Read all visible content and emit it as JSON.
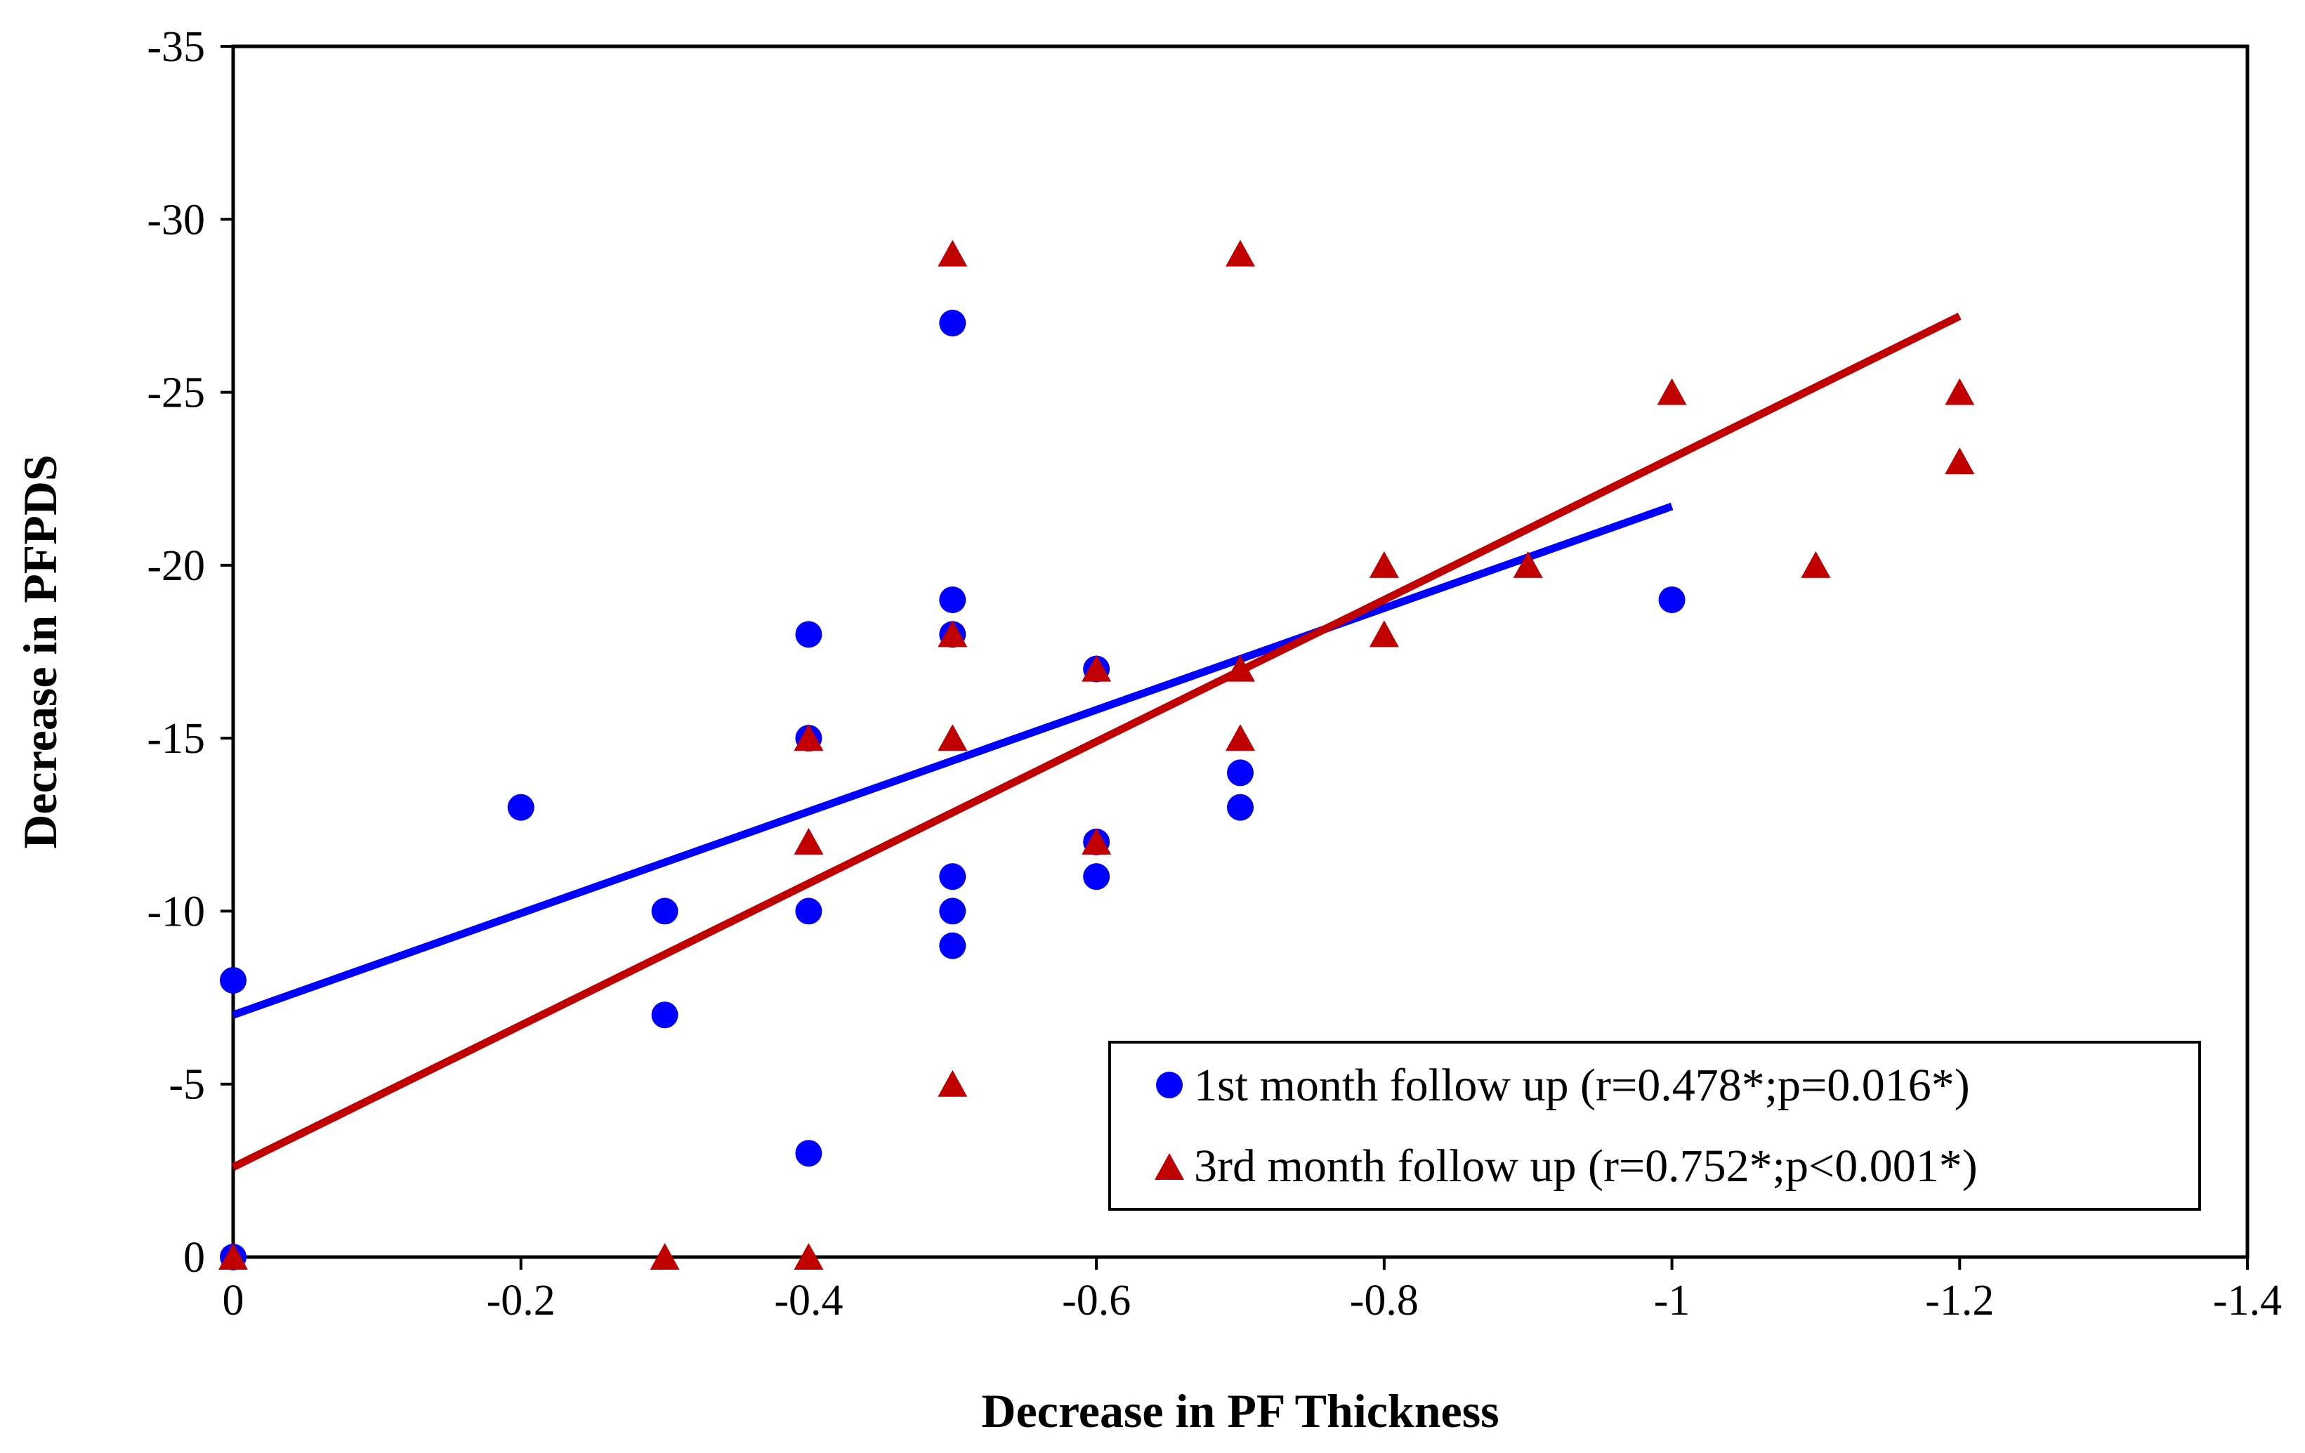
{
  "chart_data": {
    "type": "scatter",
    "title": "",
    "xlabel": "Decrease in PF Thickness",
    "ylabel": "Decrease in PFPDS",
    "xlim": [
      0,
      -1.4
    ],
    "ylim": [
      0,
      -35
    ],
    "x_ticks": [
      0,
      -0.2,
      -0.4,
      -0.6,
      -0.8,
      -1,
      -1.2,
      -1.4
    ],
    "x_tick_labels": [
      "0",
      "-0.2",
      "-0.4",
      "-0.6",
      "-0.8",
      "-1",
      "-1.2",
      "-1.4"
    ],
    "y_ticks": [
      0,
      -5,
      -10,
      -15,
      -20,
      -25,
      -30,
      -35
    ],
    "y_tick_labels": [
      "0",
      "-5",
      "-10",
      "-15",
      "-20",
      "-25",
      "-30",
      "-35"
    ],
    "grid": false,
    "legend_position": "bottom-right",
    "series": [
      {
        "name": "1st month follow up (r=0.478*;p=0.016*)",
        "marker": "circle",
        "color": "#0000ff",
        "points": [
          {
            "x": 0,
            "y": -8
          },
          {
            "x": 0,
            "y": 0
          },
          {
            "x": -0.2,
            "y": -13
          },
          {
            "x": -0.3,
            "y": -10
          },
          {
            "x": -0.3,
            "y": -7
          },
          {
            "x": -0.4,
            "y": -18
          },
          {
            "x": -0.4,
            "y": -15
          },
          {
            "x": -0.4,
            "y": -10
          },
          {
            "x": -0.4,
            "y": -3
          },
          {
            "x": -0.5,
            "y": -27
          },
          {
            "x": -0.5,
            "y": -19
          },
          {
            "x": -0.5,
            "y": -18
          },
          {
            "x": -0.5,
            "y": -11
          },
          {
            "x": -0.5,
            "y": -10
          },
          {
            "x": -0.5,
            "y": -9
          },
          {
            "x": -0.6,
            "y": -17
          },
          {
            "x": -0.6,
            "y": -12
          },
          {
            "x": -0.6,
            "y": -11
          },
          {
            "x": -0.7,
            "y": -14
          },
          {
            "x": -0.7,
            "y": -13
          },
          {
            "x": -1.0,
            "y": -19
          }
        ],
        "trendline": {
          "x": [
            0,
            -1.0
          ],
          "y": [
            -7.0,
            -21.7
          ],
          "color": "#0000ff"
        }
      },
      {
        "name": "3rd month follow up (r=0.752*;p<0.001*)",
        "marker": "triangle",
        "color": "#c00000",
        "points": [
          {
            "x": 0,
            "y": 0
          },
          {
            "x": -0.3,
            "y": 0
          },
          {
            "x": -0.4,
            "y": -15
          },
          {
            "x": -0.4,
            "y": -12
          },
          {
            "x": -0.4,
            "y": 0
          },
          {
            "x": -0.5,
            "y": -29
          },
          {
            "x": -0.5,
            "y": -18
          },
          {
            "x": -0.5,
            "y": -15
          },
          {
            "x": -0.5,
            "y": -5
          },
          {
            "x": -0.6,
            "y": -17
          },
          {
            "x": -0.6,
            "y": -12
          },
          {
            "x": -0.7,
            "y": -29
          },
          {
            "x": -0.7,
            "y": -17
          },
          {
            "x": -0.7,
            "y": -15
          },
          {
            "x": -0.8,
            "y": -20
          },
          {
            "x": -0.8,
            "y": -18
          },
          {
            "x": -0.9,
            "y": -20
          },
          {
            "x": -1.0,
            "y": -25
          },
          {
            "x": -1.1,
            "y": -20
          },
          {
            "x": -1.2,
            "y": -25
          },
          {
            "x": -1.2,
            "y": -23
          }
        ],
        "trendline": {
          "x": [
            0,
            -1.2
          ],
          "y": [
            -2.6,
            -27.2
          ],
          "color": "#c00000"
        }
      }
    ]
  }
}
